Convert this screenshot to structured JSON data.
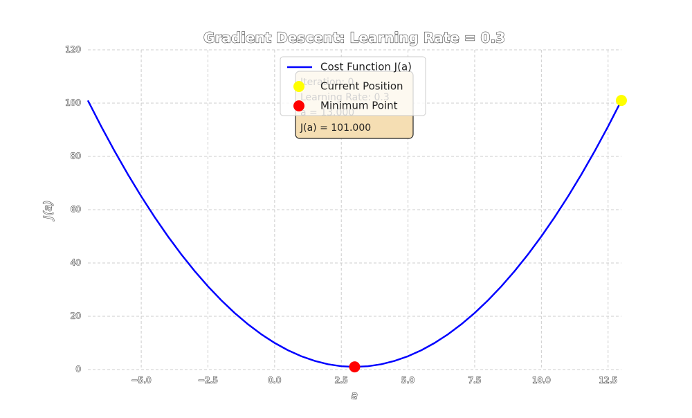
{
  "chart_data": {
    "type": "line",
    "title": "Gradient Descent: Learning Rate = 0.3",
    "xlabel": "a",
    "ylabel": "J(a)",
    "xlim": [
      -7,
      13
    ],
    "ylim": [
      0,
      120
    ],
    "xticks": [
      {
        "value": -5,
        "label": "−5.0"
      },
      {
        "value": -2.5,
        "label": "−2.5"
      },
      {
        "value": 0,
        "label": "0.0"
      },
      2.5,
      {
        "value": 5,
        "label": "5.0"
      },
      7.5,
      {
        "value": 10,
        "label": "10.0"
      },
      12.5
    ],
    "yticks": [
      0,
      20,
      40,
      60,
      80,
      100,
      120
    ],
    "grid": true,
    "legend": "upper center",
    "series": [
      {
        "name": "Cost Function J(a)",
        "color": "#0000ff",
        "style": "line",
        "x": [
          -7,
          -6.5,
          -6,
          -5.5,
          -5,
          -4.5,
          -4,
          -3.5,
          -3,
          -2.5,
          -2,
          -1.5,
          -1,
          -0.5,
          0,
          0.5,
          1,
          1.5,
          2,
          2.5,
          3,
          3.5,
          4,
          4.5,
          5,
          5.5,
          6,
          6.5,
          7,
          7.5,
          8,
          8.5,
          9,
          9.5,
          10,
          10.5,
          11,
          11.5,
          12,
          12.5,
          13
        ],
        "values": [
          101,
          91.25,
          82,
          73.25,
          65,
          57.25,
          50,
          43.25,
          37,
          31.25,
          26,
          21.25,
          17,
          13.25,
          10,
          7.25,
          5,
          3.25,
          2,
          1.25,
          1,
          1.25,
          2,
          3.25,
          5,
          7.25,
          10,
          13.25,
          17,
          21.25,
          26,
          31.25,
          37,
          43.25,
          50,
          57.25,
          65,
          73.25,
          82,
          91.25,
          101
        ]
      },
      {
        "name": "Current Position",
        "color": "#ffff00",
        "style": "marker",
        "x": [
          13
        ],
        "values": [
          101
        ]
      },
      {
        "name": "Minimum Point",
        "color": "#ff0000",
        "style": "marker",
        "x": [
          3
        ],
        "values": [
          1
        ]
      }
    ],
    "annotation": [
      "Iteration: 0",
      "Learning Rate: 0.3",
      "a = 13.000",
      "J(a) = 101.000"
    ]
  }
}
